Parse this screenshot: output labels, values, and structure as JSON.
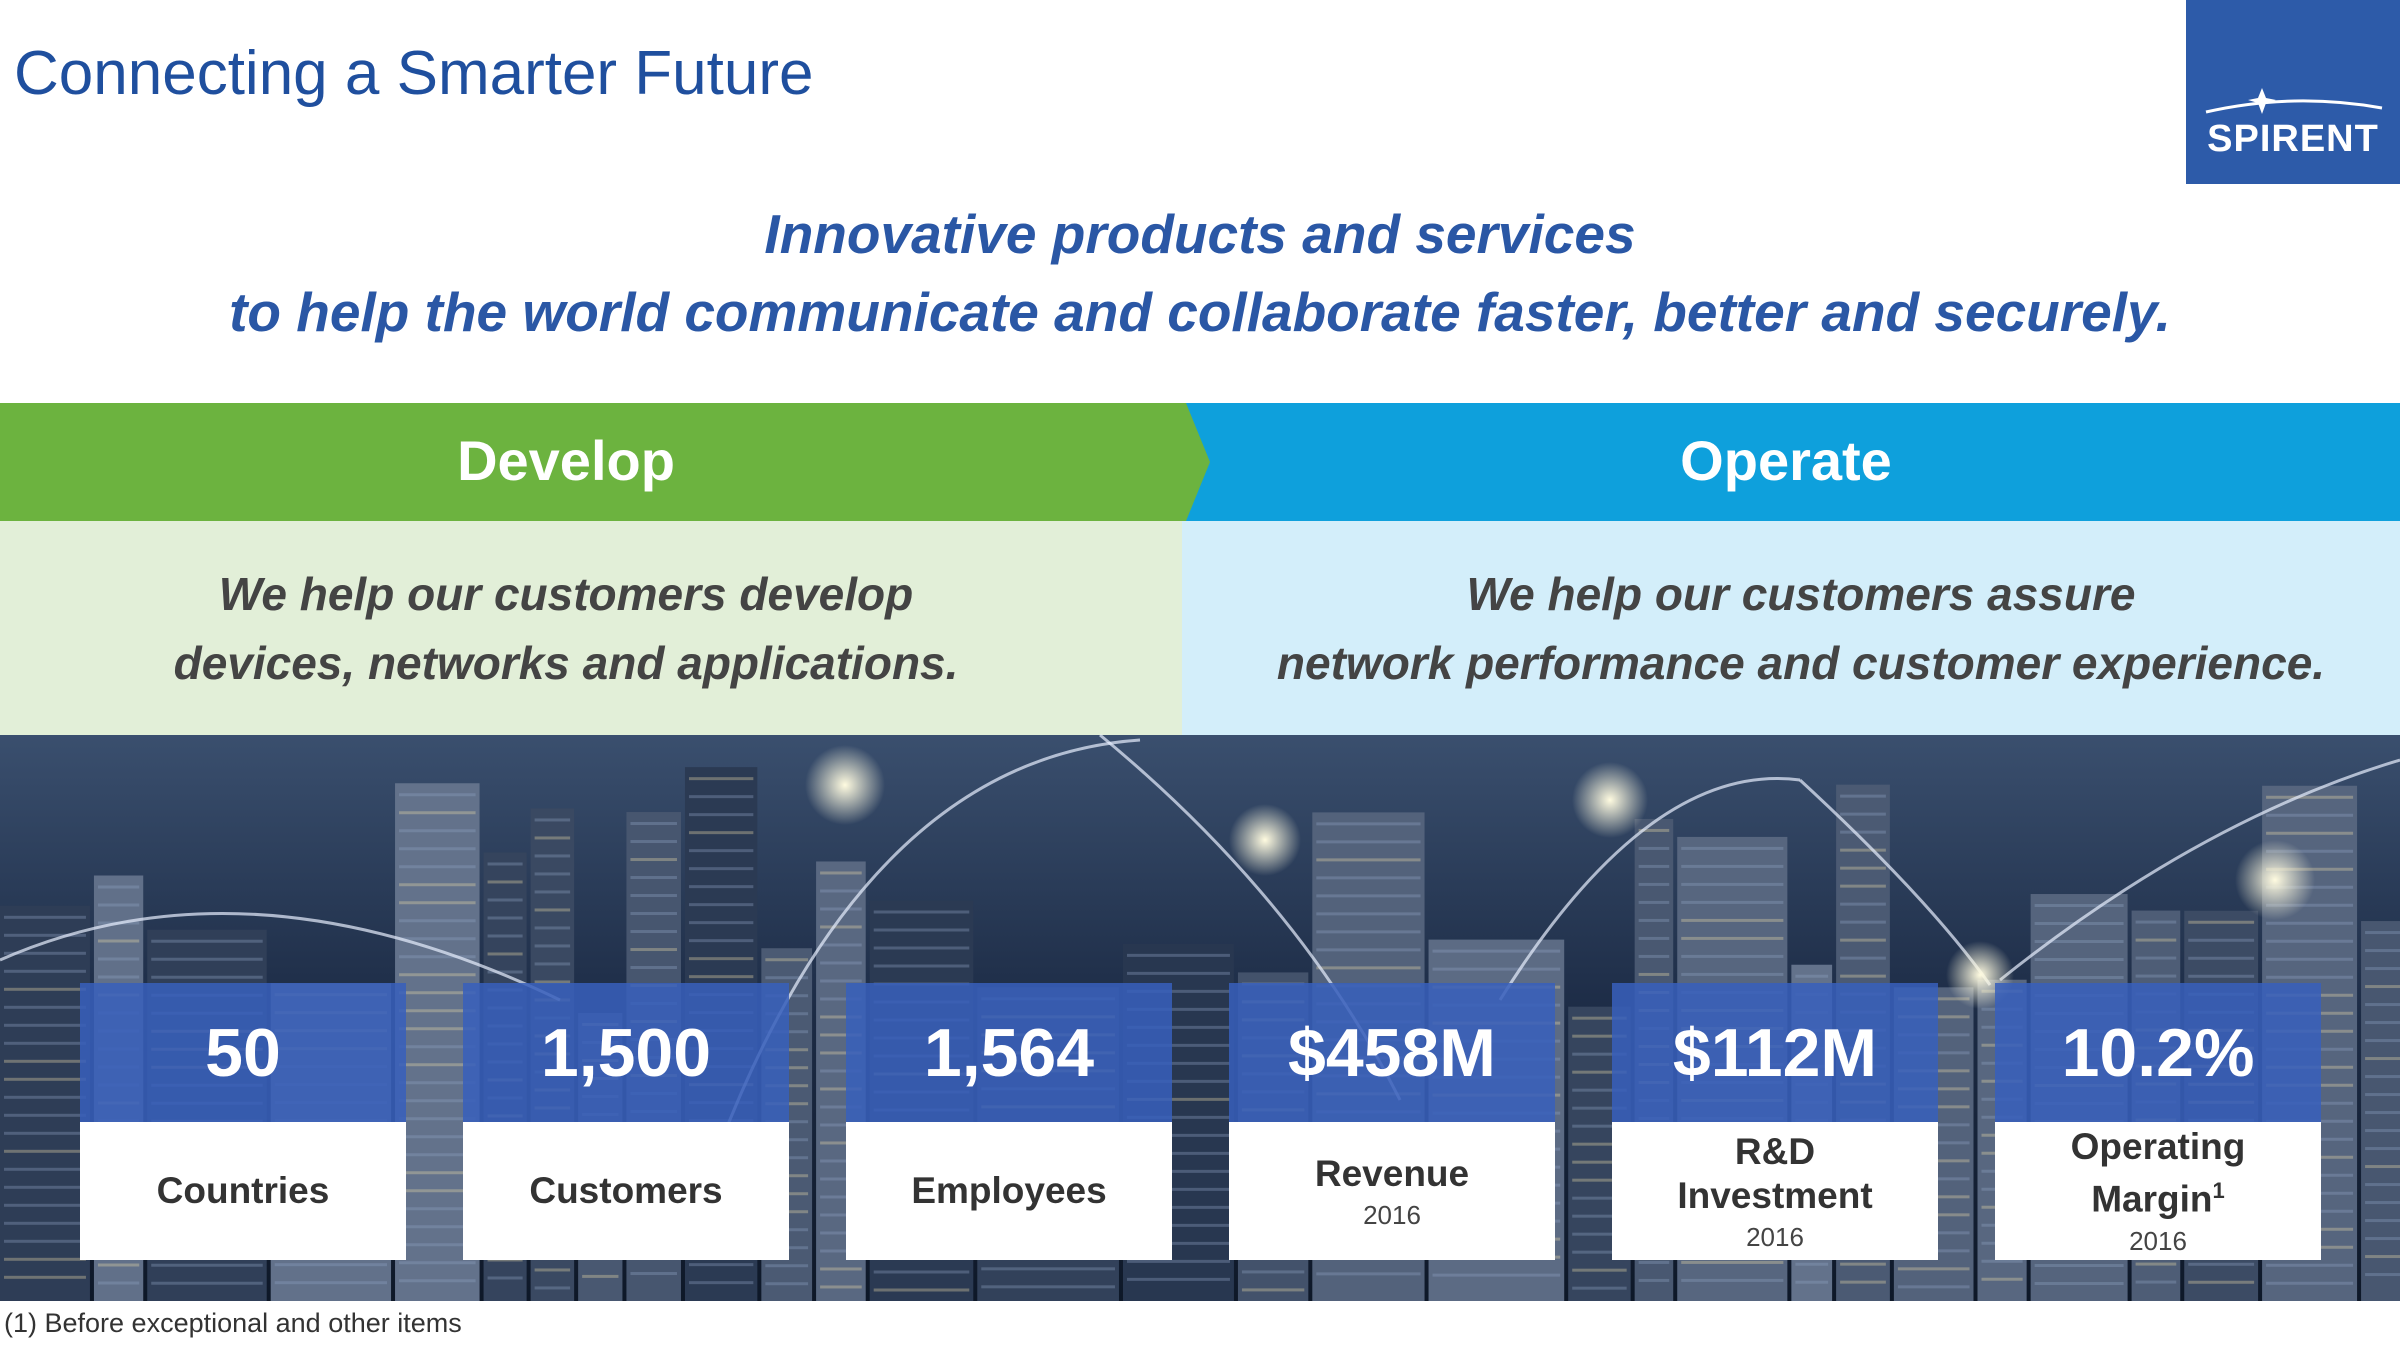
{
  "header": {
    "title": "Connecting a Smarter Future",
    "logo": "SPIRENT"
  },
  "tagline": [
    "Innovative products and services",
    "to help the world communicate and collaborate faster, better and securely."
  ],
  "sections": [
    {
      "heading": "Develop",
      "text": [
        "We help our customers develop",
        "devices, networks and applications."
      ]
    },
    {
      "heading": "Operate",
      "text": [
        "We help our customers assure",
        "network performance and customer experience."
      ]
    }
  ],
  "stats": [
    {
      "value": "50",
      "label": [
        "Countries"
      ]
    },
    {
      "value": "1,500",
      "label": [
        "Customers"
      ]
    },
    {
      "value": "1,564",
      "label": [
        "Employees"
      ]
    },
    {
      "value": "$458M",
      "label": [
        "Revenue"
      ],
      "year": "2016"
    },
    {
      "value": "$112M",
      "label": [
        "R&D",
        "Investment"
      ],
      "year": "2016"
    },
    {
      "value": "10.2%",
      "label": [
        "Operating",
        "Margin"
      ],
      "marker": "1",
      "year": "2016"
    }
  ],
  "footnote": "(1) Before exceptional and other items"
}
